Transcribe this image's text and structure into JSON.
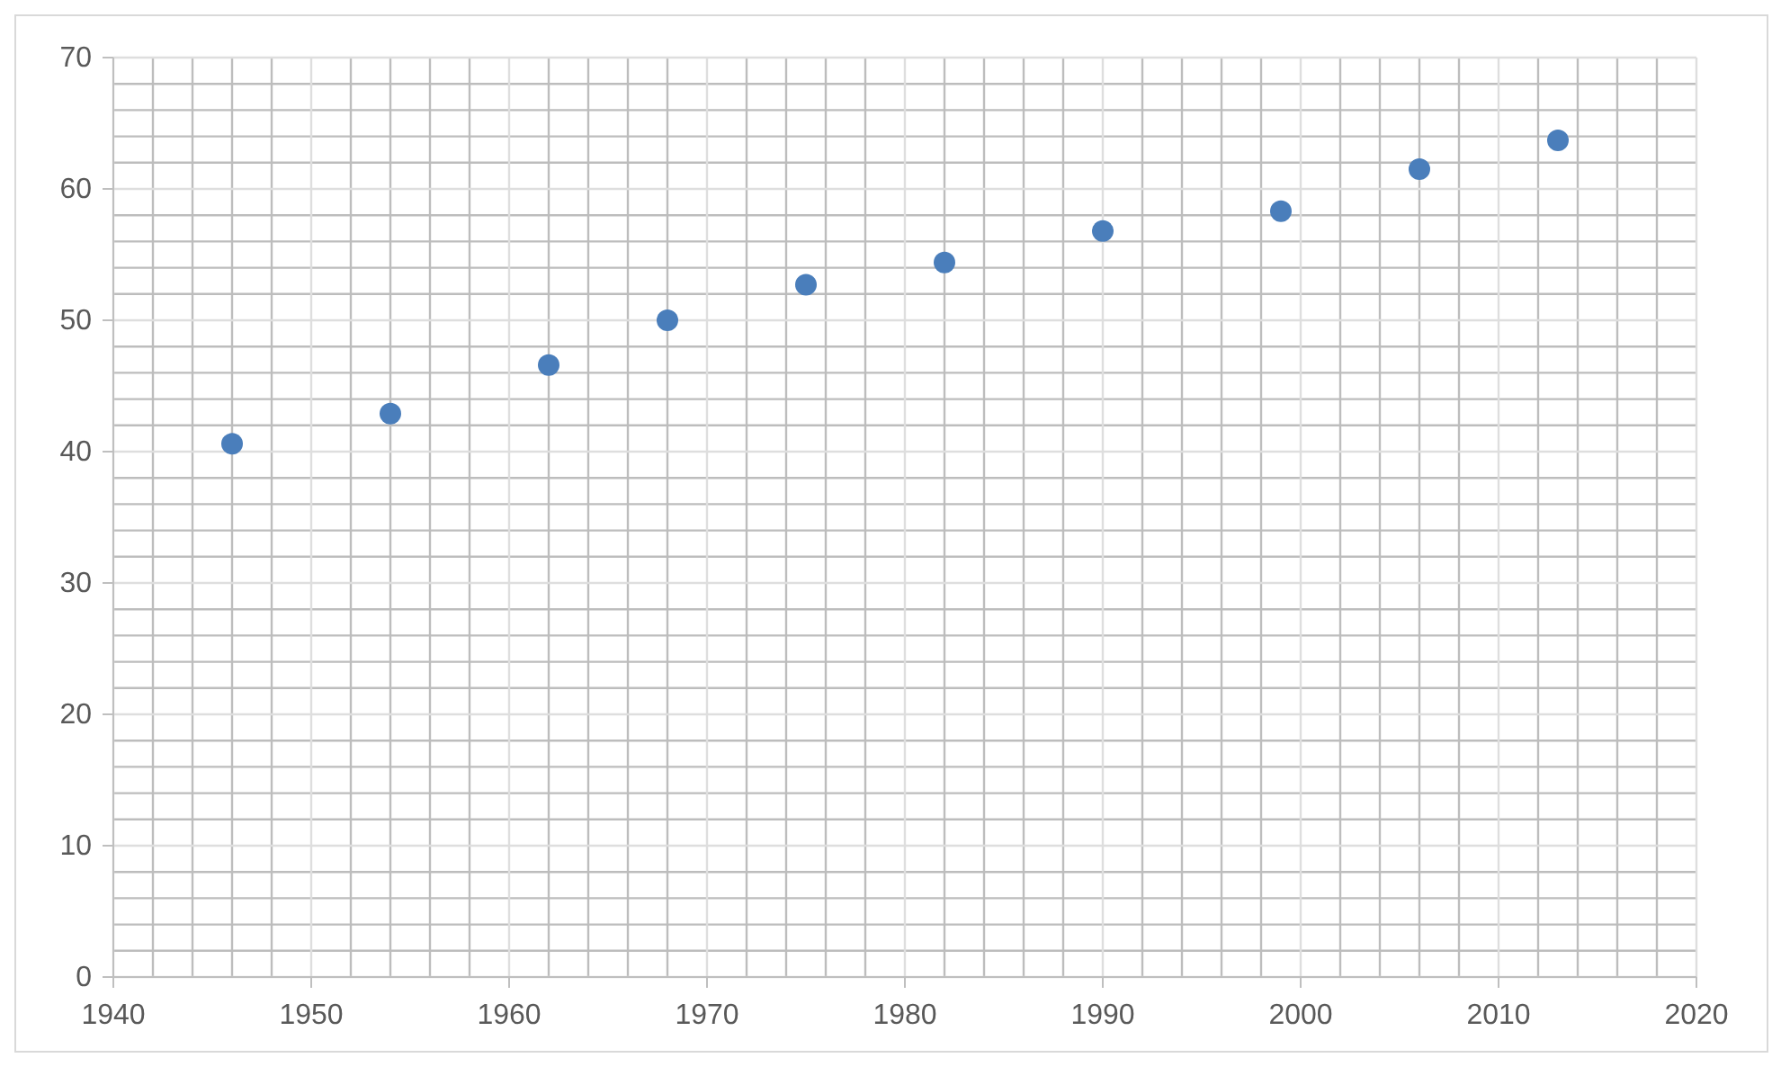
{
  "chart_data": {
    "type": "scatter",
    "x": [
      1946,
      1954,
      1962,
      1968,
      1975,
      1982,
      1990,
      1999,
      2006,
      2013
    ],
    "values": [
      40.6,
      42.9,
      46.6,
      50.0,
      52.7,
      54.4,
      56.8,
      58.3,
      61.5,
      63.7
    ],
    "color": "#4a7ebb",
    "marker": "circle",
    "grid": true,
    "xlim": [
      1940,
      2020
    ],
    "xticks": [
      1940,
      1950,
      1960,
      1970,
      1980,
      1990,
      2000,
      2010,
      2020
    ],
    "ylim": [
      0,
      70
    ],
    "yticks": [
      0,
      10,
      20,
      30,
      40,
      50,
      60,
      70
    ]
  }
}
